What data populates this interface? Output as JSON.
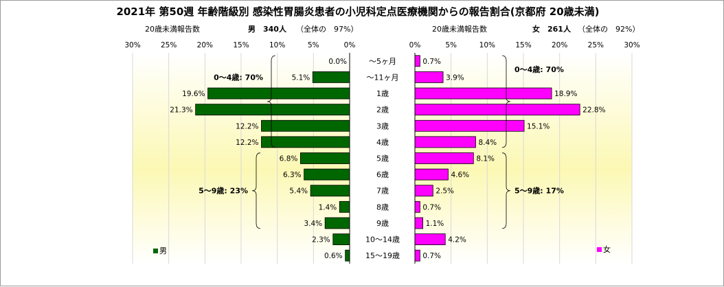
{
  "chart_data": {
    "type": "bar",
    "title": "2021年 第50週 年齢階級別 感染性胃腸炎患者の小児科定点医療機関からの報告割合(京都府 20歳未満)",
    "categories": [
      "～5ヶ月",
      "～11ヶ月",
      "1歳",
      "2歳",
      "3歳",
      "4歳",
      "5歳",
      "6歳",
      "7歳",
      "8歳",
      "9歳",
      "10～14歳",
      "15～19歳"
    ],
    "xlim": [
      0,
      30
    ],
    "ticks": [
      "30%",
      "25%",
      "20%",
      "15%",
      "10%",
      "5%",
      "0%"
    ],
    "ticks_right": [
      "0%",
      "5%",
      "10%",
      "15%",
      "20%",
      "25%",
      "30%"
    ],
    "series": [
      {
        "name": "男",
        "color": "#006600",
        "side": "left",
        "header_label": "20歳未満報告数",
        "header_main": "男　340人",
        "header_paren": "（全体の　97%）",
        "values": [
          0.0,
          5.1,
          19.6,
          21.3,
          12.2,
          12.2,
          6.8,
          6.3,
          5.4,
          1.4,
          3.4,
          2.3,
          0.6
        ],
        "labels": [
          "0.0%",
          "5.1%",
          "19.6%",
          "21.3%",
          "12.2%",
          "12.2%",
          "6.8%",
          "6.3%",
          "5.4%",
          "1.4%",
          "3.4%",
          "2.3%",
          "0.6%"
        ],
        "groups": [
          {
            "label": "0～4歳: 70%",
            "from": 0,
            "to": 5
          },
          {
            "label": "5～9歳: 23%",
            "from": 6,
            "to": 10
          }
        ]
      },
      {
        "name": "女",
        "color": "#ff00ff",
        "side": "right",
        "header_label": "20歳未満報告数",
        "header_main": "女　261人",
        "header_paren": "（全体の　92%）",
        "values": [
          0.7,
          3.9,
          18.9,
          22.8,
          15.1,
          8.4,
          8.1,
          4.6,
          2.5,
          0.7,
          1.1,
          4.2,
          0.7
        ],
        "labels": [
          "0.7%",
          "3.9%",
          "18.9%",
          "22.8%",
          "15.1%",
          "8.4%",
          "8.1%",
          "4.6%",
          "2.5%",
          "0.7%",
          "1.1%",
          "4.2%",
          "0.7%"
        ],
        "groups": [
          {
            "label": "0～4歳: 70%",
            "from": 0,
            "to": 5
          },
          {
            "label": "5～9歳: 17%",
            "from": 6,
            "to": 10
          }
        ]
      }
    ],
    "legend": {
      "left": "男",
      "right": "女"
    }
  }
}
